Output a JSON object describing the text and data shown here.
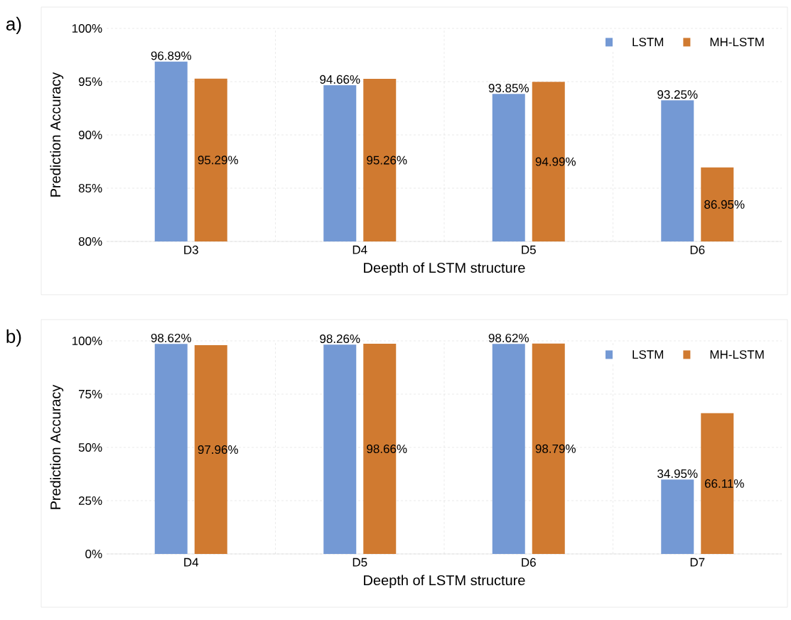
{
  "chart_data": [
    {
      "type": "bar",
      "categories": [
        "D3",
        "D4",
        "D5",
        "D6"
      ],
      "xlabel": "Deepth of LSTM structure",
      "ylabel": "Prediction Accuracy",
      "annotations": [
        "a)"
      ],
      "ylim": [
        80,
        100
      ],
      "yticks": [
        {
          "value": 80,
          "label": "80%"
        },
        {
          "value": 85,
          "label": "85%"
        },
        {
          "value": 90,
          "label": "90%"
        },
        {
          "value": 95,
          "label": "95%"
        },
        {
          "value": 100,
          "label": "100%"
        }
      ],
      "grid": true,
      "legend": "top right",
      "series": [
        {
          "name": "LSTM",
          "color": "#7499d4",
          "values": [
            96.89,
            94.66,
            93.85,
            93.25
          ],
          "value_labels": [
            "96.89%",
            "94.66%",
            "93.85%",
            "93.25%"
          ]
        },
        {
          "name": "MH-LSTM",
          "color": "#d07a30",
          "values": [
            95.29,
            95.26,
            94.99,
            86.95
          ],
          "value_labels": [
            "95.29%",
            "95.26%",
            "94.99%",
            "86.95%"
          ]
        }
      ]
    },
    {
      "type": "bar",
      "categories": [
        "D4",
        "D5",
        "D6",
        "D7"
      ],
      "xlabel": "Deepth of LSTM structure",
      "ylabel": "Prediction Accuracy",
      "annotations": [
        "b)"
      ],
      "ylim": [
        0,
        100
      ],
      "yticks": [
        {
          "value": 0,
          "label": "0%"
        },
        {
          "value": 25,
          "label": "25%"
        },
        {
          "value": 50,
          "label": "50%"
        },
        {
          "value": 75,
          "label": "75%"
        },
        {
          "value": 100,
          "label": "100%"
        }
      ],
      "grid": true,
      "legend": "top right",
      "series": [
        {
          "name": "LSTM",
          "color": "#7499d4",
          "values": [
            98.62,
            98.26,
            98.62,
            34.95
          ],
          "value_labels": [
            "98.62%",
            "98.26%",
            "98.62%",
            "34.95%"
          ]
        },
        {
          "name": "MH-LSTM",
          "color": "#d07a30",
          "values": [
            97.96,
            98.66,
            98.79,
            66.11
          ],
          "value_labels": [
            "97.96%",
            "98.66%",
            "98.79%",
            "66.11%"
          ]
        }
      ]
    }
  ]
}
